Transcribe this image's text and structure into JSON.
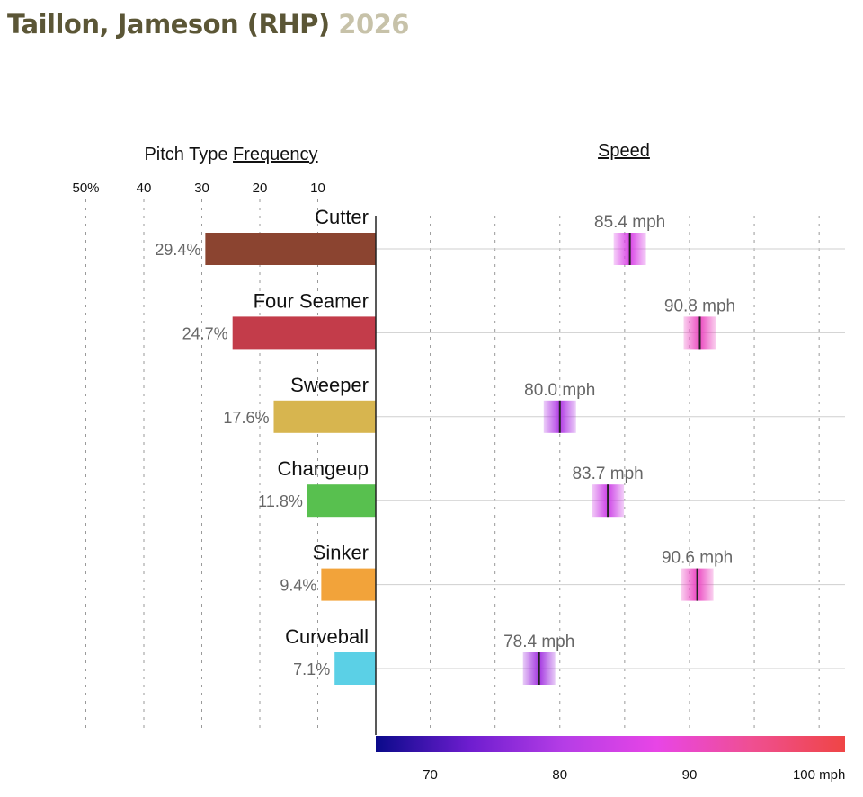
{
  "header": {
    "player": "Taillon, Jameson (RHP)",
    "year": "2026"
  },
  "chart_data": {
    "type": "bar",
    "left_panel": {
      "title_prefix": "Pitch Type ",
      "title_underlined": "Frequency",
      "ticks": [
        50,
        40,
        30,
        20,
        10
      ],
      "tick_labels": [
        "50%",
        "40",
        "30",
        "20",
        "10"
      ]
    },
    "right_panel": {
      "title": "Speed",
      "xlim": [
        65.8,
        102
      ],
      "ticks": [
        70,
        75,
        80,
        85,
        90,
        95,
        100
      ],
      "tick_labels": [
        "70",
        "80",
        "90",
        "100 mph"
      ],
      "tick_label_values": [
        70,
        80,
        90,
        100
      ],
      "colorbar": [
        "#0a0a8a",
        "#6e1dcf",
        "#b53de6",
        "#e845e6",
        "#ef4f92",
        "#ef4545"
      ]
    },
    "pitches": [
      {
        "name": "Cutter",
        "frequency": 29.4,
        "freq_label": "29.4%",
        "speed": 85.4,
        "speed_label": "85.4 mph",
        "color": "#8b4430"
      },
      {
        "name": "Four Seamer",
        "frequency": 24.7,
        "freq_label": "24.7%",
        "speed": 90.8,
        "speed_label": "90.8 mph",
        "color": "#c33c4a"
      },
      {
        "name": "Sweeper",
        "frequency": 17.6,
        "freq_label": "17.6%",
        "speed": 80.0,
        "speed_label": "80.0 mph",
        "color": "#d7b54f"
      },
      {
        "name": "Changeup",
        "frequency": 11.8,
        "freq_label": "11.8%",
        "speed": 83.7,
        "speed_label": "83.7 mph",
        "color": "#58c04f"
      },
      {
        "name": "Sinker",
        "frequency": 9.4,
        "freq_label": "9.4%",
        "speed": 90.6,
        "speed_label": "90.6 mph",
        "color": "#f2a33a"
      },
      {
        "name": "Curveball",
        "frequency": 7.1,
        "freq_label": "7.1%",
        "speed": 78.4,
        "speed_label": "78.4 mph",
        "color": "#5bd0e6"
      }
    ]
  }
}
